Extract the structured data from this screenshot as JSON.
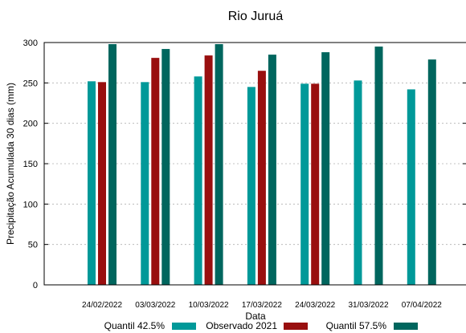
{
  "chart_data": {
    "type": "bar",
    "title": "Rio Juruá",
    "xlabel": "Data",
    "ylabel": "Precipitação Acumulada 30 dias (mm)",
    "ylim": [
      0,
      300
    ],
    "yticks": [
      0,
      50,
      100,
      150,
      200,
      250,
      300
    ],
    "grid": true,
    "legend_position": "bottom",
    "categories": [
      "24/02/2022",
      "03/03/2022",
      "10/03/2022",
      "17/03/2022",
      "24/03/2022",
      "31/03/2022",
      "07/04/2022"
    ],
    "series": [
      {
        "name": "Quantil 42.5%",
        "color": "#009999",
        "values": [
          252,
          251,
          258,
          245,
          249,
          253,
          242
        ]
      },
      {
        "name": "Observado 2021",
        "color": "#990f0f",
        "values": [
          251,
          281,
          284,
          265,
          249,
          null,
          null
        ]
      },
      {
        "name": "Quantil 57.5%",
        "color": "#00665e",
        "values": [
          298,
          292,
          298,
          285,
          288,
          295,
          279
        ]
      }
    ]
  }
}
